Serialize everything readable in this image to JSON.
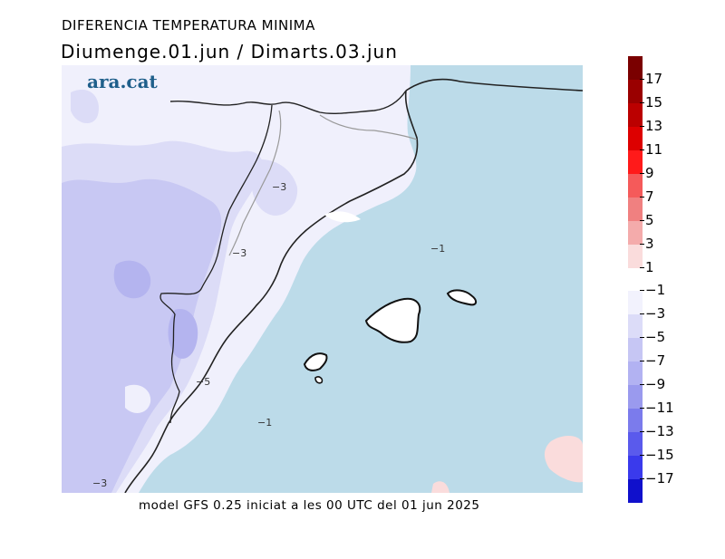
{
  "title": "DIFERENCIA TEMPERATURA MINIMA",
  "subtitle": "Diumenge.01.jun  /  Dimarts.03.jun",
  "logo": "ara.cat",
  "footer": "model GFS 0.25 iniciat a les 00 UTC del 01 jun 2025",
  "contour_labels": [
    "−3",
    "−3",
    "−1",
    "−5",
    "−1",
    "−3"
  ],
  "colorbar": {
    "positive": {
      "labels": [
        "17",
        "15",
        "13",
        "11",
        "9",
        "7",
        "5",
        "3",
        "1"
      ],
      "colors": [
        "#7a0000",
        "#9a0000",
        "#bb0000",
        "#dd0000",
        "#ff1a1a",
        "#f55a5a",
        "#f08080",
        "#f4abab",
        "#fadcdc"
      ]
    },
    "negative": {
      "labels": [
        "−1",
        "−3",
        "−5",
        "−7",
        "−9",
        "−11",
        "−13",
        "−15",
        "−17"
      ],
      "colors": [
        "#f2f2fd",
        "#dcdcf8",
        "#c6c6f4",
        "#b2b2f2",
        "#9a9aee",
        "#7b7bec",
        "#5a5aec",
        "#3a3aec",
        "#1010cc"
      ]
    }
  },
  "map_colors": {
    "sea": "#bcdbe9",
    "lightest": "#f0f0fc",
    "light": "#dcdcf7",
    "medium": "#c8c8f3",
    "strong": "#b4b4ef",
    "pink": "#fadcdc",
    "land_white": "#ffffff"
  }
}
